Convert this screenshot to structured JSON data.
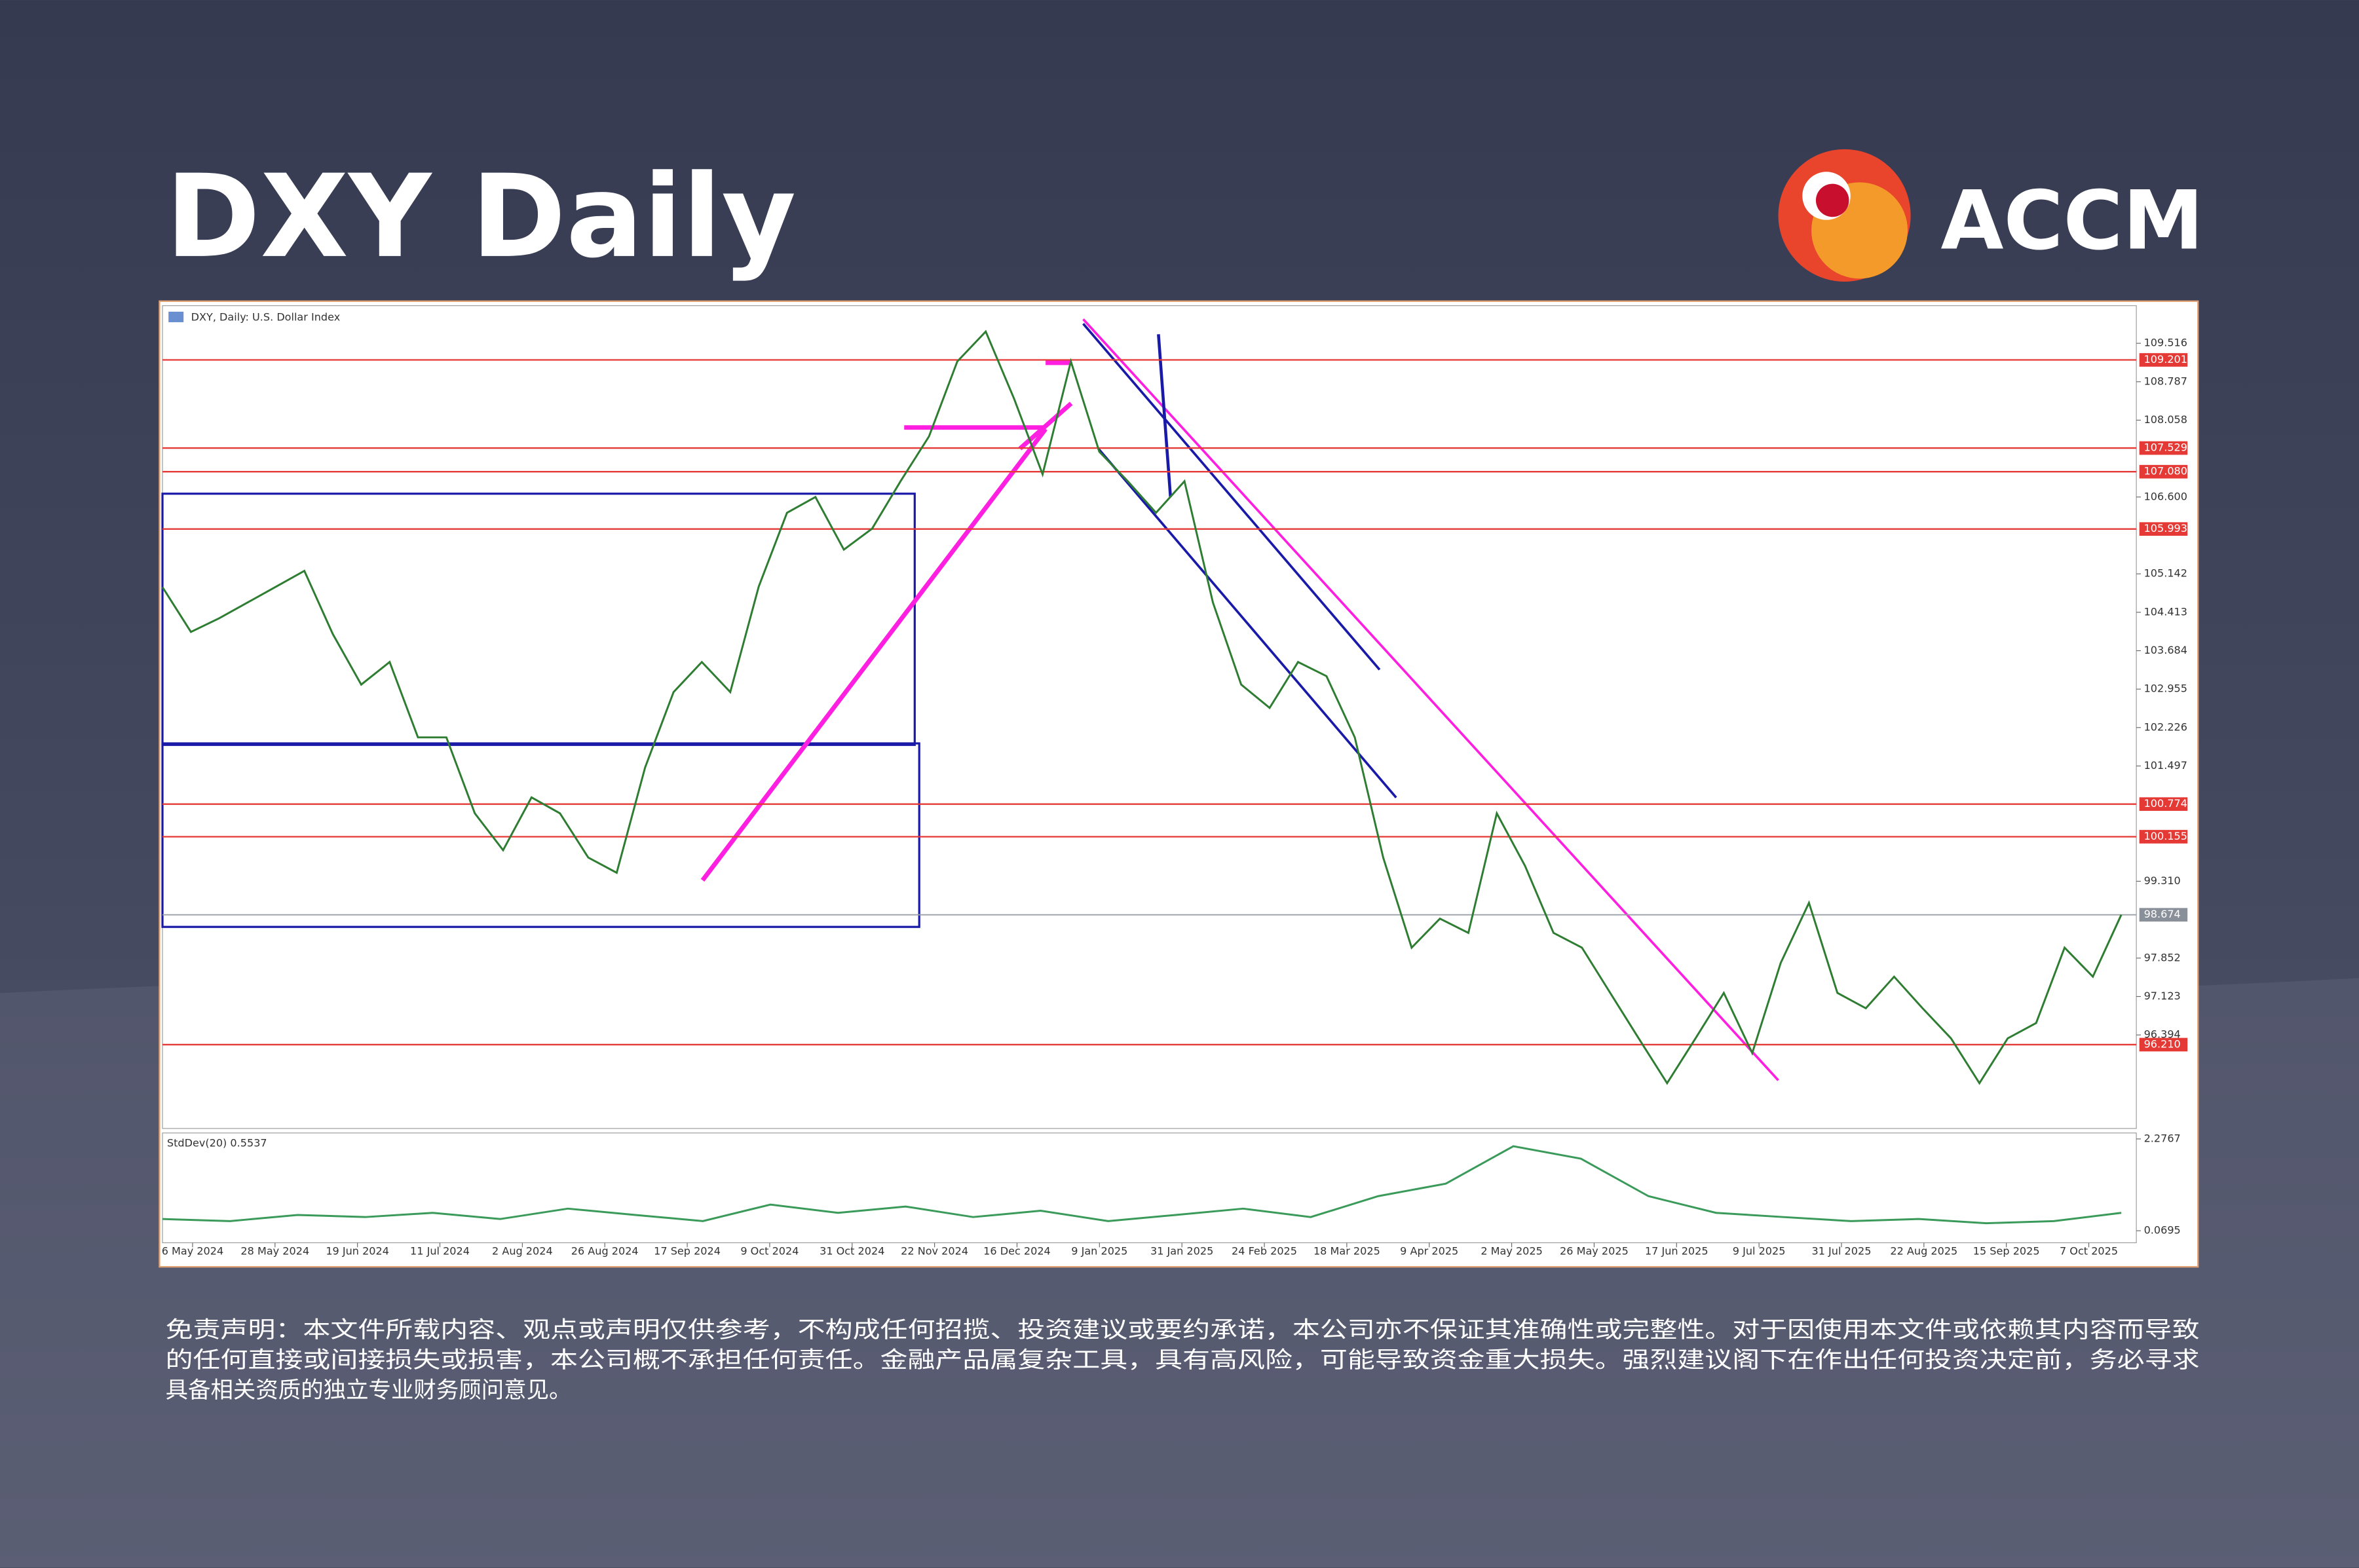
{
  "header": {
    "title": "DXY Daily",
    "logo": "ACCM"
  },
  "chart_data": {
    "type": "line",
    "title": "DXY, Daily: U.S. Dollar Index",
    "color": "#2e7d32",
    "values": [
      104.89,
      104.04,
      104.3,
      104.6,
      104.9,
      105.2,
      104.0,
      103.04,
      103.47,
      102.04,
      102.04,
      100.6,
      99.9,
      100.9,
      100.6,
      99.76,
      99.47,
      101.47,
      102.9,
      103.47,
      102.9,
      104.9,
      106.3,
      106.6,
      105.6,
      106.0,
      106.9,
      107.75,
      109.17,
      109.74,
      108.46,
      107.03,
      109.17,
      107.46,
      106.9,
      106.3,
      106.9,
      104.6,
      103.04,
      102.6,
      103.47,
      103.2,
      102.04,
      99.76,
      98.05,
      98.6,
      98.33,
      100.6,
      99.6,
      98.33,
      98.05,
      97.19,
      96.33,
      95.48,
      96.33,
      97.19,
      96.05,
      97.76,
      98.9,
      97.19,
      96.9,
      97.5,
      96.9,
      96.33,
      95.48,
      96.33,
      96.62,
      98.05,
      97.5,
      98.674
    ],
    "x_tick_labels": [
      "6 May 2024",
      "28 May 2024",
      "19 Jun 2024",
      "11 Jul 2024",
      "2 Aug 2024",
      "26 Aug 2024",
      "17 Sep 2024",
      "9 Oct 2024",
      "31 Oct 2024",
      "22 Nov 2024",
      "16 Dec 2024",
      "9 Jan 2025",
      "31 Jan 2025",
      "24 Feb 2025",
      "18 Mar 2025",
      "9 Apr 2025",
      "2 May 2025",
      "26 May 2025",
      "17 Jun 2025",
      "9 Jul 2025",
      "31 Jul 2025",
      "22 Aug 2025",
      "15 Sep 2025",
      "7 Oct 2025"
    ],
    "ylim": [
      94.62,
      110.23
    ],
    "yticks": [
      109.516,
      108.787,
      108.058,
      {
        "value": 106.6,
        "label": "106.600"
      },
      105.142,
      104.413,
      103.684,
      102.955,
      102.226,
      101.497,
      {
        "value": 99.31,
        "label": "99.310"
      },
      97.852,
      97.123,
      96.394
    ],
    "levels": [
      109.201,
      107.529,
      {
        "value": 107.08,
        "label": "107.080"
      },
      105.993,
      100.774,
      100.155,
      {
        "value": 96.21,
        "label": "96.210"
      }
    ],
    "level_color": "#e53935",
    "current_price": 98.674,
    "indicator": {
      "type": "line",
      "label": "StdDev(20) 0.5537",
      "color": "#3a9a5a",
      "values": [
        0.35,
        0.3,
        0.45,
        0.4,
        0.5,
        0.35,
        0.6,
        0.45,
        0.3,
        0.7,
        0.5,
        0.65,
        0.4,
        0.55,
        0.3,
        0.45,
        0.6,
        0.4,
        0.9,
        1.2,
        2.1,
        1.8,
        0.9,
        0.5,
        0.4,
        0.3,
        0.35,
        0.25,
        0.3,
        0.5
      ],
      "ylim": [
        -0.22,
        2.42
      ],
      "yticks": [
        2.2767,
        0.0695
      ]
    }
  },
  "disclaimer": {
    "lines": [
      "免责声明：本文件所载内容、观点或声明仅供参考，不构成任何招揽、投资建议或要约承诺，本公司亦不保证其准确性或完整性。对于因使用本文件或依赖其内容而导致",
      "的任何直接或间接损失或损害，本公司概不承担任何责任。金融产品属复杂工具，具有高风险，可能导致资金重大损失。强烈建议阁下在作出任何投资决定前，务必寻求",
      "具备相关资质的独立专业财务顾问意见。"
    ]
  }
}
